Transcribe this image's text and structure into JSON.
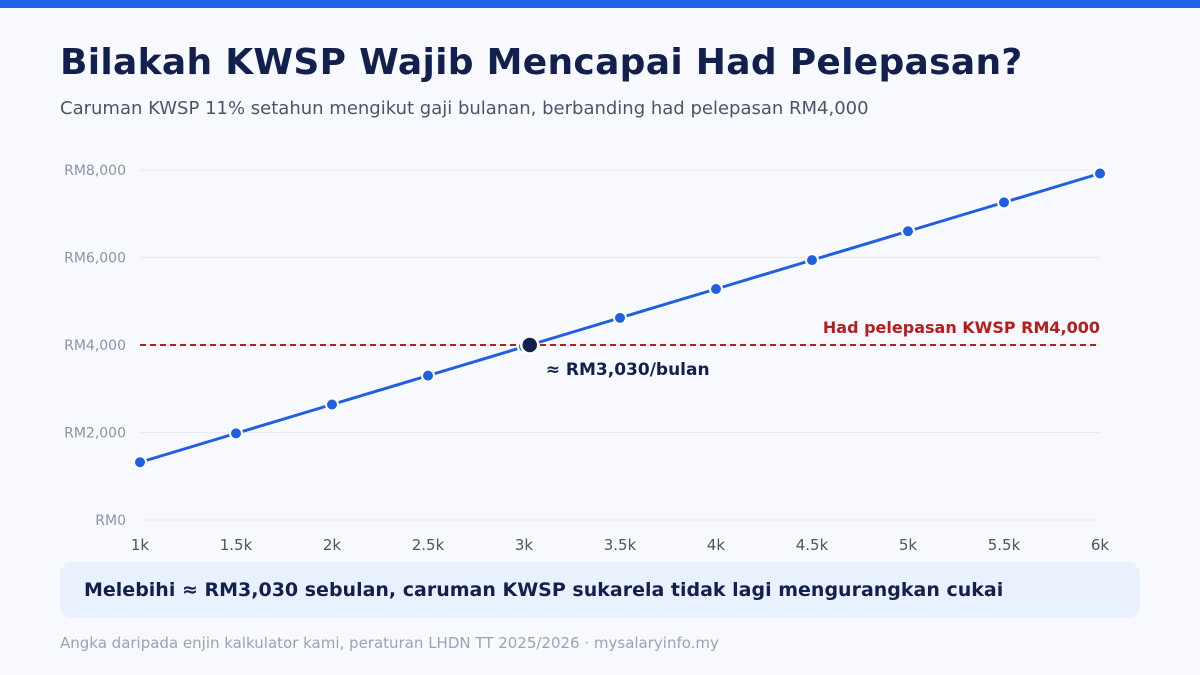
{
  "header": {
    "title": "Bilakah KWSP Wajib Mencapai Had Pelepasan?",
    "subtitle": "Caruman KWSP 11% setahun mengikut gaji bulanan, berbanding had pelepasan RM4,000"
  },
  "chart_data": {
    "type": "line",
    "title": "Bilakah KWSP Wajib Mencapai Had Pelepasan?",
    "subtitle": "Caruman KWSP 11% setahun mengikut gaji bulanan, berbanding had pelepasan RM4,000",
    "xlabel": "",
    "ylabel": "",
    "x": [
      1000,
      1500,
      2000,
      2500,
      3000,
      3500,
      4000,
      4500,
      5000,
      5500,
      6000
    ],
    "x_tick_labels": [
      "1k",
      "1.5k",
      "2k",
      "2.5k",
      "3k",
      "3.5k",
      "4k",
      "4.5k",
      "5k",
      "5.5k",
      "6k"
    ],
    "series": [
      {
        "values": [
          1320,
          1980,
          2640,
          3300,
          3960,
          4620,
          5280,
          5940,
          6600,
          7260,
          7920
        ]
      }
    ],
    "ylim": [
      0,
      8000
    ],
    "xlim": [
      1000,
      6000
    ],
    "y_ticks": [
      0,
      2000,
      4000,
      6000,
      8000
    ],
    "y_tick_labels": [
      "RM0",
      "RM2,000",
      "RM4,000",
      "RM6,000",
      "RM8,000"
    ],
    "grid": "horizontal",
    "reference_line": {
      "value": 4000,
      "label": "Had pelepasan KWSP RM4,000",
      "style": "dashed"
    },
    "highlight_point": {
      "x": 3030,
      "y": 4000,
      "label": "≈ RM3,030/bulan"
    },
    "colors": {
      "line": "#1f5fe0",
      "reference": "#b91c1c",
      "highlight": "#13204d",
      "grid": "#e5e8ef",
      "tick_text": "#8a94a6",
      "x_tick_text": "#4b5567"
    }
  },
  "callout": {
    "text": "Melebihi ≈ RM3,030 sebulan, caruman KWSP sukarela tidak lagi mengurangkan cukai"
  },
  "footer": {
    "text": "Angka daripada enjin kalkulator kami, peraturan LHDN TT 2025/2026 · mysalaryinfo.my"
  }
}
